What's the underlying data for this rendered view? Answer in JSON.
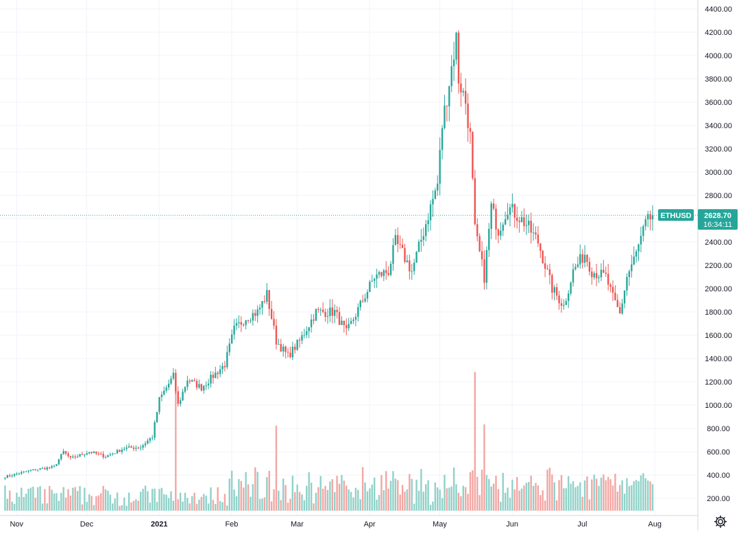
{
  "chart_data": {
    "type": "candlestick",
    "symbol": "ETHUSD",
    "last_price": "2628.70",
    "countdown": "16:34:11",
    "y_ticks": [
      "4400.00",
      "4200.00",
      "4000.00",
      "3800.00",
      "3600.00",
      "3400.00",
      "3200.00",
      "3000.00",
      "2800.00",
      "2600.00",
      "2400.00",
      "2200.00",
      "2000.00",
      "1800.00",
      "1600.00",
      "1400.00",
      "1200.00",
      "1000.00",
      "800.00",
      "600.00",
      "400.00",
      "200.00"
    ],
    "ylim": [
      200,
      4400
    ],
    "x_ticks": [
      "Nov",
      "Dec",
      "2021",
      "Feb",
      "Mar",
      "Apr",
      "May",
      "Jun",
      "Jul",
      "Aug"
    ],
    "grid": true,
    "colors": {
      "up": "#26a69a",
      "down": "#ef5350",
      "up_volume": "#8fd1c8",
      "down_volume": "#f2a6a3",
      "grid": "#f0f3fa",
      "axis_text": "#131722",
      "price_line": "#26a69a",
      "label_bg": "#26a69a",
      "label_text": "#ffffff"
    },
    "price_anchors": [
      [
        "2020-10-30",
        385
      ],
      [
        "2020-11-10",
        440
      ],
      [
        "2020-11-20",
        470
      ],
      [
        "2020-11-24",
        600
      ],
      [
        "2020-11-27",
        540
      ],
      [
        "2020-12-05",
        600
      ],
      [
        "2020-12-12",
        560
      ],
      [
        "2020-12-20",
        630
      ],
      [
        "2020-12-27",
        640
      ],
      [
        "2021-01-01",
        730
      ],
      [
        "2021-01-04",
        1050
      ],
      [
        "2021-01-10",
        1250
      ],
      [
        "2021-01-12",
        1000
      ],
      [
        "2021-01-16",
        1220
      ],
      [
        "2021-01-22",
        1150
      ],
      [
        "2021-01-27",
        1250
      ],
      [
        "2021-02-01",
        1350
      ],
      [
        "2021-02-05",
        1650
      ],
      [
        "2021-02-10",
        1750
      ],
      [
        "2021-02-15",
        1800
      ],
      [
        "2021-02-19",
        1950
      ],
      [
        "2021-02-23",
        1550
      ],
      [
        "2021-02-28",
        1420
      ],
      [
        "2021-03-05",
        1550
      ],
      [
        "2021-03-12",
        1800
      ],
      [
        "2021-03-20",
        1800
      ],
      [
        "2021-03-25",
        1620
      ],
      [
        "2021-04-01",
        1900
      ],
      [
        "2021-04-06",
        2100
      ],
      [
        "2021-04-12",
        2150
      ],
      [
        "2021-04-15",
        2400
      ],
      [
        "2021-04-18",
        2300
      ],
      [
        "2021-04-22",
        2150
      ],
      [
        "2021-04-25",
        2350
      ],
      [
        "2021-04-30",
        2700
      ],
      [
        "2021-05-03",
        2900
      ],
      [
        "2021-05-05",
        3400
      ],
      [
        "2021-05-09",
        3900
      ],
      [
        "2021-05-11",
        4150
      ],
      [
        "2021-05-12",
        3800
      ],
      [
        "2021-05-15",
        3600
      ],
      [
        "2021-05-17",
        3300
      ],
      [
        "2021-05-19",
        2500
      ],
      [
        "2021-05-23",
        2100
      ],
      [
        "2021-05-26",
        2700
      ],
      [
        "2021-05-29",
        2500
      ],
      [
        "2021-06-02",
        2700
      ],
      [
        "2021-06-05",
        2650
      ],
      [
        "2021-06-10",
        2550
      ],
      [
        "2021-06-15",
        2400
      ],
      [
        "2021-06-18",
        2200
      ],
      [
        "2021-06-21",
        2000
      ],
      [
        "2021-06-26",
        1850
      ],
      [
        "2021-06-30",
        2150
      ],
      [
        "2021-07-05",
        2300
      ],
      [
        "2021-07-08",
        2150
      ],
      [
        "2021-07-14",
        2100
      ],
      [
        "2021-07-17",
        1920
      ],
      [
        "2021-07-20",
        1780
      ],
      [
        "2021-07-23",
        2100
      ],
      [
        "2021-07-27",
        2300
      ],
      [
        "2021-07-31",
        2550
      ],
      [
        "2021-08-03",
        2628.7
      ]
    ],
    "volume_spikes": [
      [
        "2021-01-11",
        1220
      ],
      [
        "2021-02-23",
        830
      ],
      [
        "2021-05-19",
        1290
      ],
      [
        "2021-05-23",
        840
      ]
    ]
  }
}
